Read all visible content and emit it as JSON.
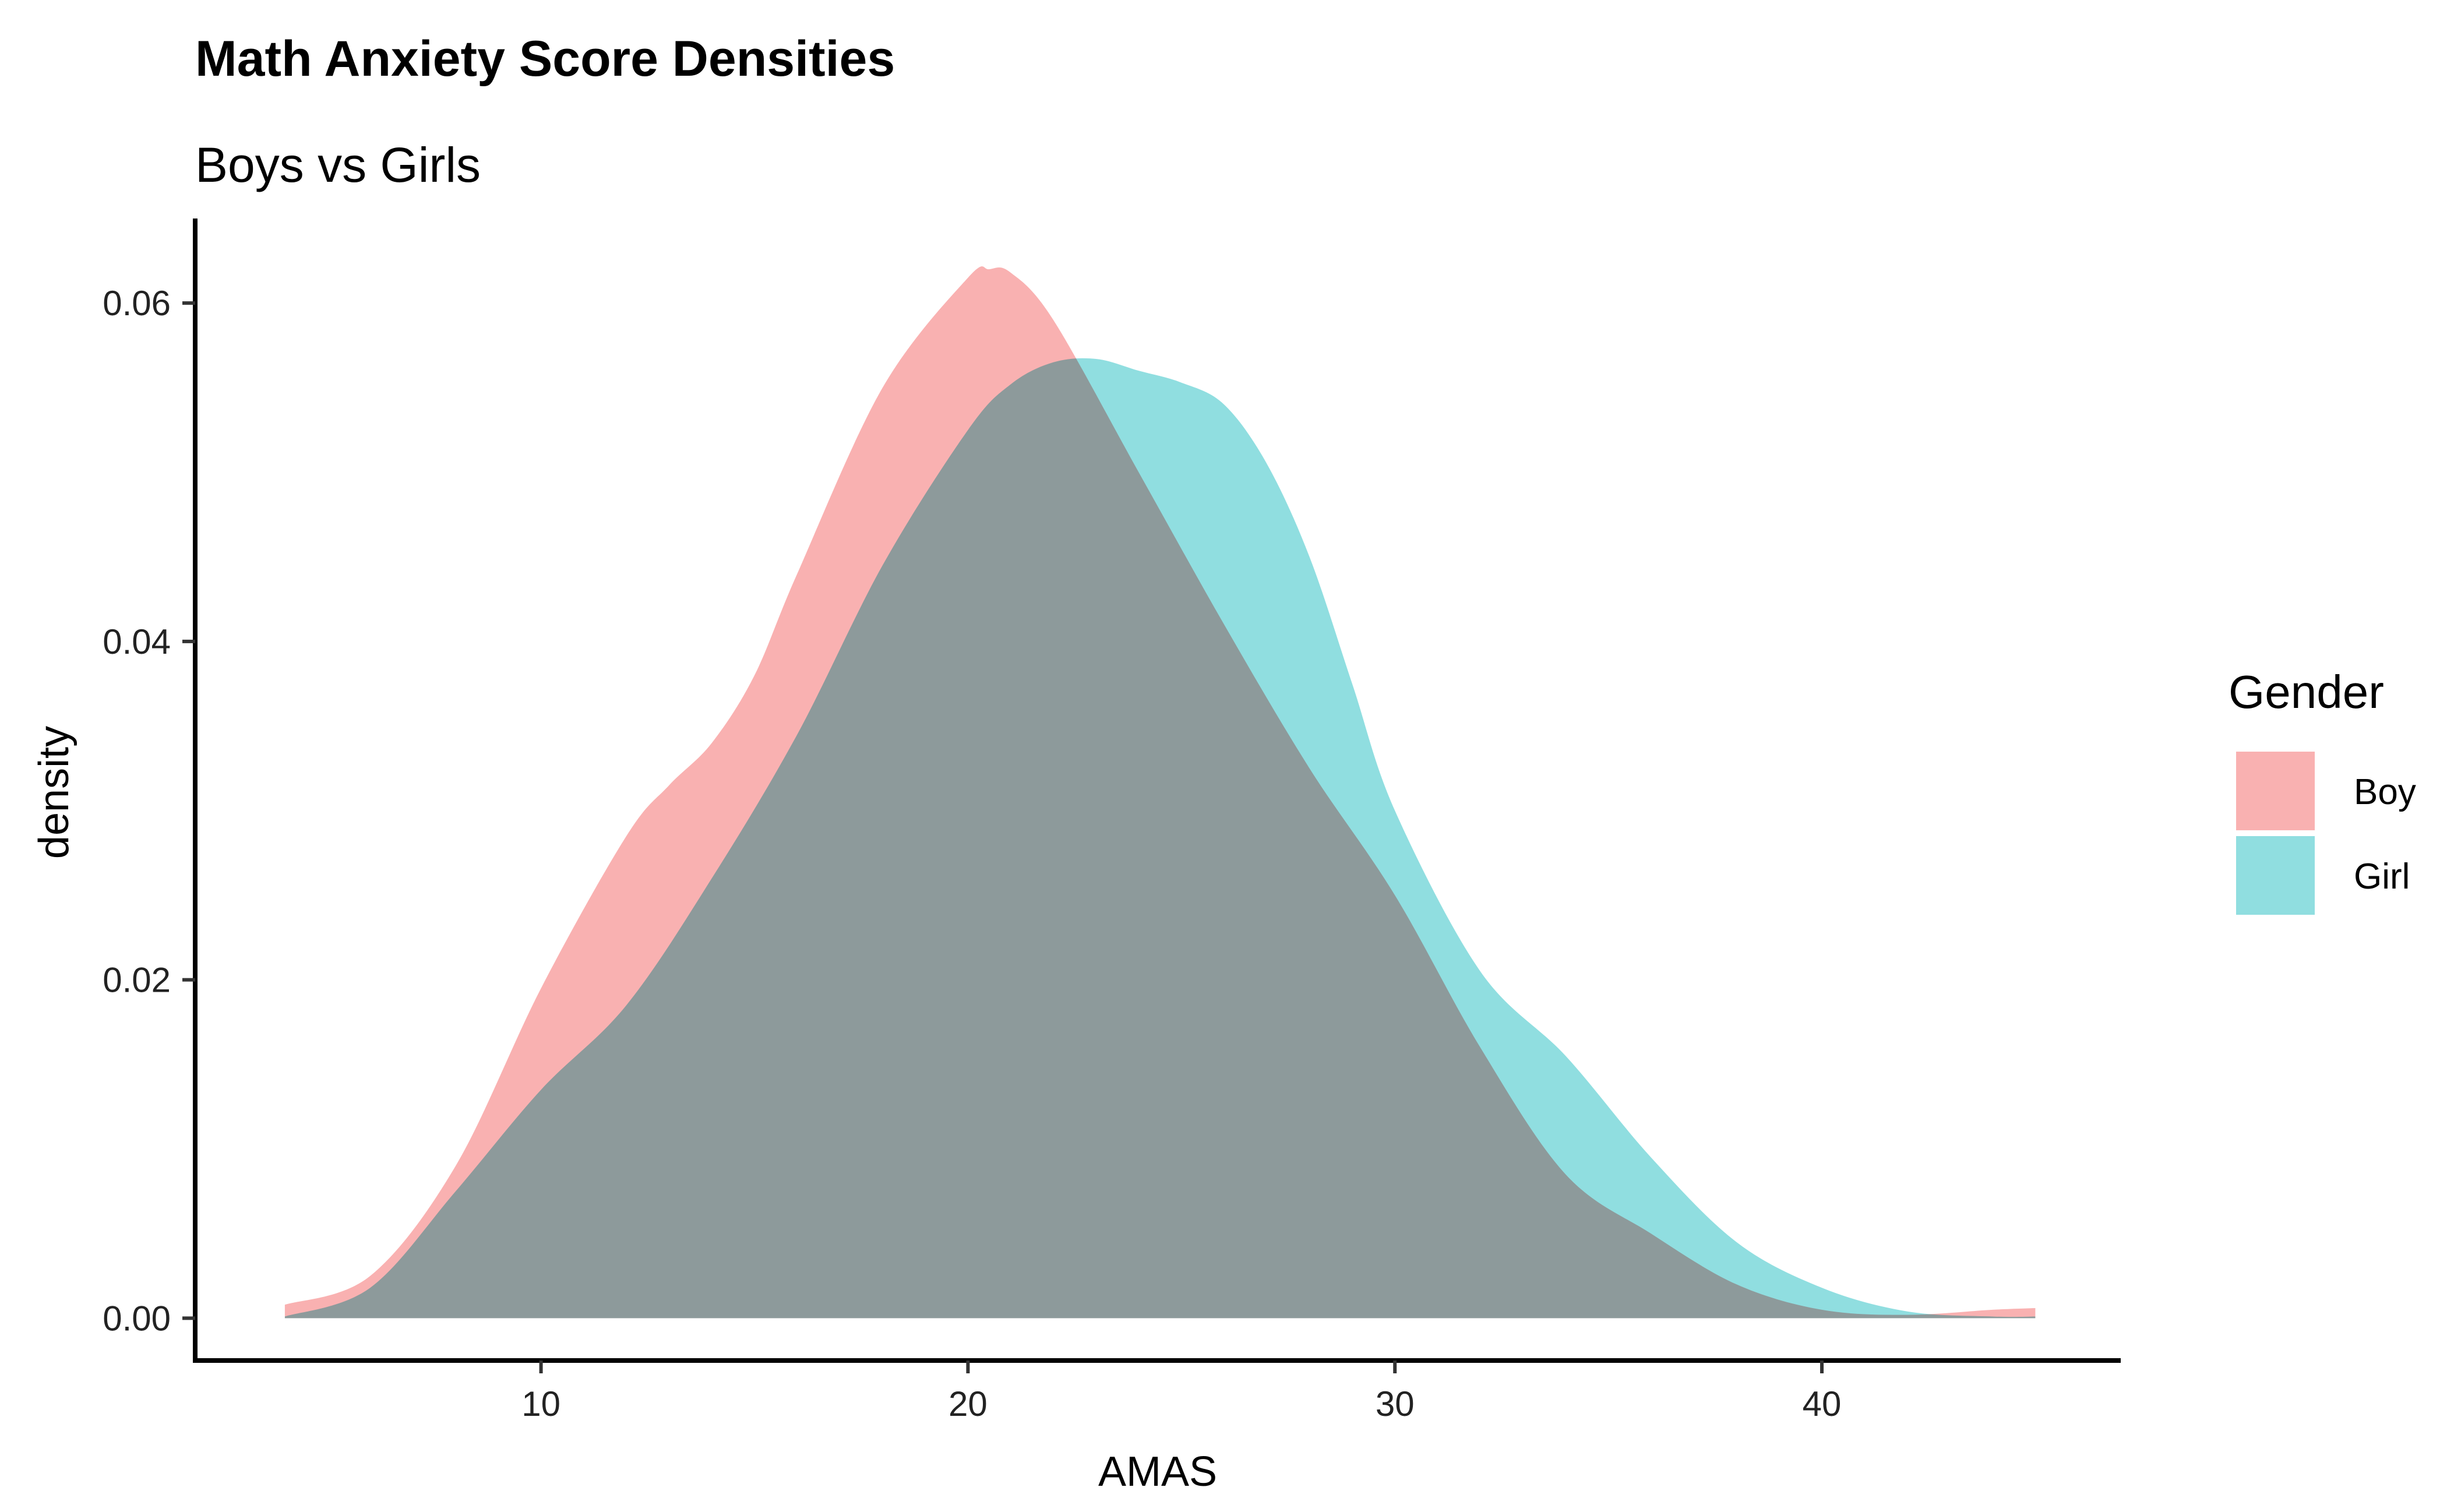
{
  "chart_data": {
    "type": "area",
    "title": "Math Anxiety Score Densities",
    "subtitle": "Boys vs Girls",
    "xlabel": "AMAS",
    "ylabel": "density",
    "xlim": [
      1.9,
      47
    ],
    "ylim": [
      -0.0025,
      0.065
    ],
    "xticks": [
      10,
      20,
      30,
      40
    ],
    "yticks": [
      0.0,
      0.02,
      0.04,
      0.06
    ],
    "xtick_labels": [
      "10",
      "20",
      "30",
      "40"
    ],
    "ytick_labels": [
      "0.00",
      "0.02",
      "0.04",
      "0.06"
    ],
    "grid": false,
    "legend": {
      "title": "Gender",
      "position": "right"
    },
    "series": [
      {
        "name": "Boy",
        "color": "#F8A3A3",
        "x": [
          4,
          6,
          8,
          10,
          12,
          13,
          14,
          15,
          16,
          18,
          20,
          20.5,
          21,
          22,
          24,
          26,
          28,
          30,
          32,
          34,
          36,
          38,
          40,
          42,
          44,
          45
        ],
        "y": [
          0.0008,
          0.0025,
          0.009,
          0.0195,
          0.0285,
          0.0315,
          0.034,
          0.038,
          0.044,
          0.055,
          0.0615,
          0.062,
          0.0618,
          0.059,
          0.05,
          0.041,
          0.0325,
          0.025,
          0.016,
          0.0085,
          0.005,
          0.002,
          0.0005,
          0.0002,
          0.0005,
          0.0006
        ]
      },
      {
        "name": "Girl",
        "color": "#7CD8DA",
        "x": [
          4,
          6,
          8,
          10,
          12,
          14,
          16,
          18,
          20,
          21,
          22,
          23,
          24,
          25,
          26,
          27,
          28,
          29,
          30,
          32,
          34,
          36,
          38,
          40,
          42,
          44,
          45
        ],
        "y": [
          0.0001,
          0.0018,
          0.0075,
          0.0135,
          0.0185,
          0.026,
          0.0345,
          0.0445,
          0.0525,
          0.0552,
          0.0565,
          0.0567,
          0.056,
          0.0553,
          0.054,
          0.0505,
          0.045,
          0.0375,
          0.03,
          0.0205,
          0.0155,
          0.0095,
          0.0045,
          0.0018,
          0.0004,
          0.0001,
          0.0001
        ]
      }
    ]
  }
}
